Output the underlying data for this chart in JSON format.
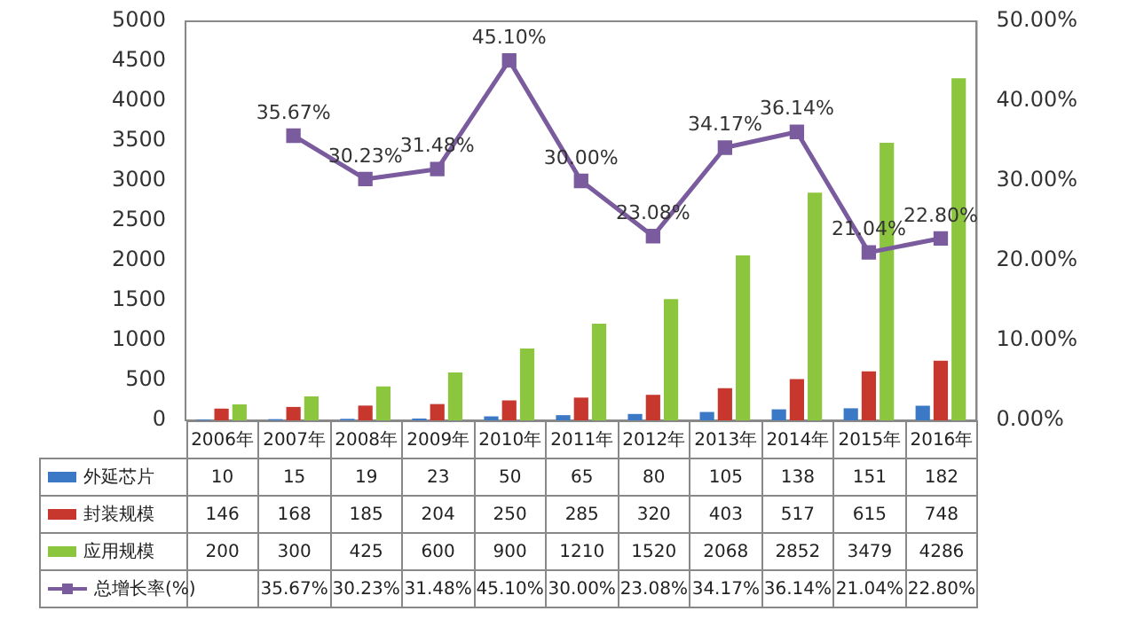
{
  "chart_data": {
    "type": "bar",
    "categories": [
      "2006年",
      "2007年",
      "2008年",
      "2009年",
      "2010年",
      "2011年",
      "2012年",
      "2013年",
      "2014年",
      "2015年",
      "2016年"
    ],
    "series": [
      {
        "name": "外延芯片",
        "color": "#3b78c6",
        "values": [
          10,
          15,
          19,
          23,
          50,
          65,
          80,
          105,
          138,
          151,
          182
        ]
      },
      {
        "name": "封装规模",
        "color": "#c8372d",
        "values": [
          146,
          168,
          185,
          204,
          250,
          285,
          320,
          403,
          517,
          615,
          748
        ]
      },
      {
        "name": "应用规模",
        "color": "#8cc63f",
        "values": [
          200,
          300,
          425,
          600,
          900,
          1210,
          1520,
          2068,
          2852,
          3479,
          4286
        ]
      },
      {
        "name": "总增长率(%)",
        "type": "line",
        "axis": "y2",
        "color": "#7a5c9e",
        "marker": "square",
        "values": [
          null,
          35.67,
          30.23,
          31.48,
          45.1,
          30.0,
          23.08,
          34.17,
          36.14,
          21.04,
          22.8
        ],
        "value_labels": [
          null,
          "35.67%",
          "30.23%",
          "31.48%",
          "45.10%",
          "30.00%",
          "23.08%",
          "34.17%",
          "36.14%",
          "21.04%",
          "22.80%"
        ]
      }
    ],
    "ylim": [
      0,
      5000
    ],
    "yticks": [
      0,
      500,
      1000,
      1500,
      2000,
      2500,
      3000,
      3500,
      4000,
      4500,
      5000
    ],
    "y2lim": [
      0,
      50
    ],
    "y2ticks": [
      {
        "value": 0,
        "label": "0.00%"
      },
      {
        "value": 10,
        "label": "10.00%"
      },
      {
        "value": 20,
        "label": "20.00%"
      },
      {
        "value": 30,
        "label": "30.00%"
      },
      {
        "value": 40,
        "label": "40.00%"
      },
      {
        "value": 50,
        "label": "50.00%"
      }
    ],
    "data_labels": true,
    "legend": "bottom"
  }
}
